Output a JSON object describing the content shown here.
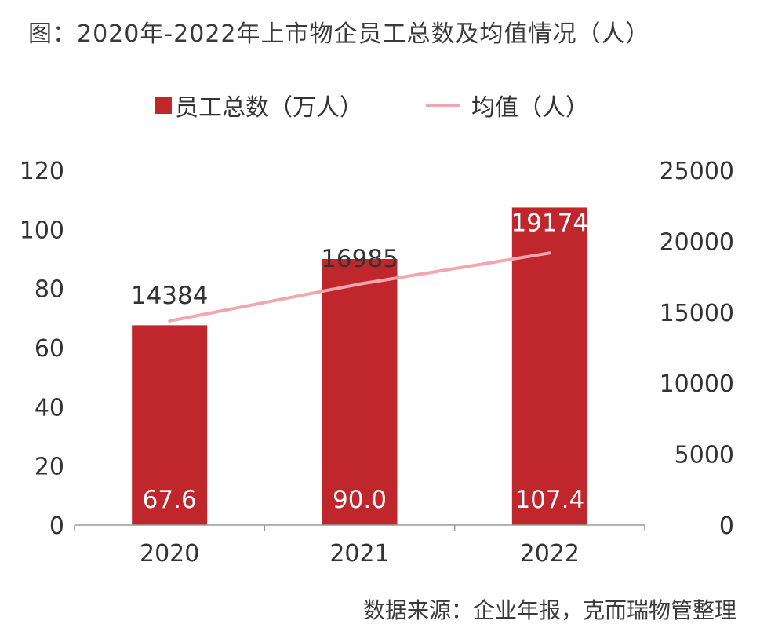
{
  "title": "图：2020年-2022年上市物企员工总数及均值情况（人）",
  "source": "数据来源：企业年报，克而瑞物管整理",
  "colors": {
    "bar": "#C0272D",
    "line": "#F2A7AE",
    "axis": "#9a9a9a",
    "text": "#333333"
  },
  "legend": {
    "bar_label": "员工总数（万人）",
    "line_label": "均值（人）"
  },
  "chart_data": {
    "type": "bar+line",
    "title": "图：2020年-2022年上市物企员工总数及均值情况（人）",
    "categories": [
      "2020",
      "2021",
      "2022"
    ],
    "series": [
      {
        "name": "员工总数（万人）",
        "type": "bar",
        "axis": "left",
        "values": [
          67.6,
          90.0,
          107.4
        ],
        "labels": [
          "67.6",
          "90.0",
          "107.4"
        ]
      },
      {
        "name": "均值（人）",
        "type": "line",
        "axis": "right",
        "values": [
          14384,
          16985,
          19174
        ],
        "labels": [
          "14384",
          "16985",
          "19174"
        ]
      }
    ],
    "y_left": {
      "min": 0,
      "max": 120,
      "ticks": [
        "0",
        "20",
        "40",
        "60",
        "80",
        "100",
        "120"
      ]
    },
    "y_right": {
      "min": 0,
      "max": 25000,
      "ticks": [
        "0",
        "5000",
        "10000",
        "15000",
        "20000",
        "25000"
      ]
    },
    "legend_position": "top",
    "grid": false
  }
}
